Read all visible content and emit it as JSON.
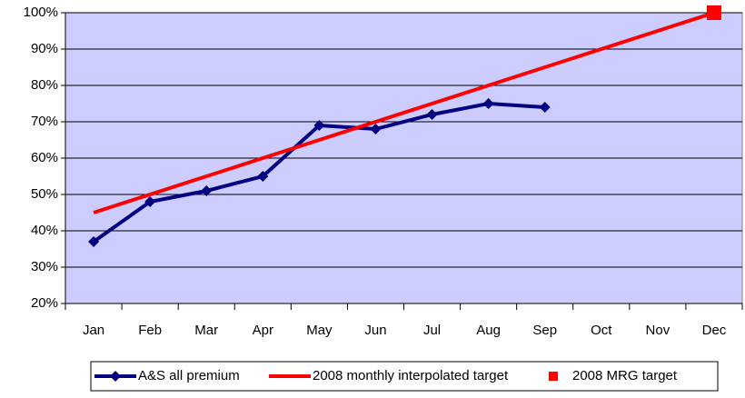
{
  "chart_data": {
    "type": "line",
    "categories": [
      "Jan",
      "Feb",
      "Mar",
      "Apr",
      "May",
      "Jun",
      "Jul",
      "Aug",
      "Sep",
      "Oct",
      "Nov",
      "Dec"
    ],
    "series": [
      {
        "name": "A&S all premium",
        "color": "#000080",
        "line": true,
        "marker": "diamond",
        "values": [
          37,
          48,
          51,
          55,
          69,
          68,
          72,
          75,
          74,
          null,
          null,
          null
        ]
      },
      {
        "name": "2008 monthly interpolated target",
        "color": "#ff0000",
        "line": true,
        "marker": "none",
        "values": [
          45,
          50,
          55,
          60,
          65,
          70,
          75,
          80,
          85,
          90,
          95,
          100
        ]
      },
      {
        "name": "2008 MRG target",
        "color": "#ff0000",
        "line": false,
        "marker": "square",
        "values": [
          null,
          null,
          null,
          null,
          null,
          null,
          null,
          null,
          null,
          null,
          null,
          100
        ]
      }
    ],
    "ylim": [
      20,
      100
    ],
    "yticks": [
      {
        "value": 20,
        "label": "20%"
      },
      {
        "value": 30,
        "label": "30%"
      },
      {
        "value": 40,
        "label": "40%"
      },
      {
        "value": 50,
        "label": "50%"
      },
      {
        "value": 60,
        "label": "60%"
      },
      {
        "value": 70,
        "label": "70%"
      },
      {
        "value": 80,
        "label": "80%"
      },
      {
        "value": 90,
        "label": "90%"
      },
      {
        "value": 100,
        "label": "100%"
      }
    ],
    "grid": true,
    "plot_background": "#ccccff",
    "legend": "bottom"
  }
}
